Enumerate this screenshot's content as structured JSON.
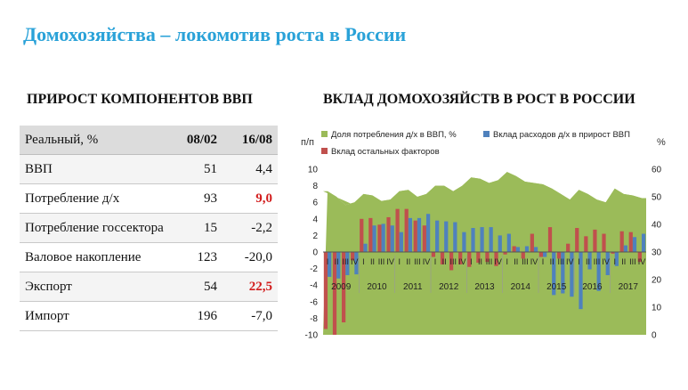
{
  "page": {
    "title": "Домохозяйства – локомотив роста в России",
    "left_heading": "ПРИРОСТ КОМПОНЕНТОВ ВВП",
    "right_heading": "ВКЛАД ДОМОХОЗЯЙСТВ В РОСТ В РОССИИ"
  },
  "table": {
    "header": {
      "label": "Реальный, %",
      "col1": "08/02",
      "col2": "16/08"
    },
    "rows": [
      {
        "label": "ВВП",
        "v1": "51",
        "v2": "4,4",
        "highlight": false
      },
      {
        "label": "Потребление д/х",
        "v1": "93",
        "v2": "9,0",
        "highlight": true
      },
      {
        "label": "Потребление госсектора",
        "v1": "15",
        "v2": "-2,2",
        "highlight": false
      },
      {
        "label": "Валовое накопление",
        "v1": "123",
        "v2": "-20,0",
        "highlight": false
      },
      {
        "label": "Экспорт",
        "v1": "54",
        "v2": "22,5",
        "highlight": true
      },
      {
        "label": "Импорт",
        "v1": "196",
        "v2": "-7,0",
        "highlight": false
      }
    ],
    "highlight_color": "#d21d1d"
  },
  "chart_data": {
    "type": "bar",
    "left_unit": "п/п",
    "right_unit": "%",
    "ylim_left": [
      -10,
      10
    ],
    "yticks_left": [
      -10,
      -8,
      -6,
      -4,
      -2,
      0,
      2,
      4,
      6,
      8,
      10
    ],
    "ylim_right": [
      0,
      60
    ],
    "yticks_right": [
      0,
      10,
      20,
      30,
      40,
      50,
      60
    ],
    "legend_placement": "top",
    "years": [
      "2009",
      "2010",
      "2011",
      "2012",
      "2013",
      "2014",
      "2015",
      "2016",
      "2017"
    ],
    "quarters": [
      "I",
      "II",
      "III",
      "IV",
      "I",
      "II",
      "III",
      "IV",
      "I",
      "II",
      "III",
      "IV",
      "I",
      "II",
      "III",
      "IV",
      "I",
      "II",
      "III",
      "IV",
      "I",
      "II",
      "III",
      "IV",
      "I",
      "II",
      "III",
      "IV",
      "I",
      "II",
      "III",
      "IV",
      "I",
      "II",
      "III",
      "IV"
    ],
    "series": [
      {
        "name": "Доля потребления д/х в ВВП, %",
        "kind": "area",
        "axis": "right",
        "color": "#9bbb59",
        "values": [
          52,
          50,
          47,
          48,
          51,
          50.5,
          48.5,
          49,
          52,
          52.5,
          50,
          51,
          54,
          54,
          52,
          54,
          57,
          56.5,
          55,
          56,
          59,
          57.5,
          55.5,
          55,
          54.5,
          53,
          51,
          49,
          52.5,
          51,
          49,
          48,
          53,
          51,
          50.5,
          49.5
        ]
      },
      {
        "name": "Вклад расходов д/х в прирост ВВП",
        "kind": "bar",
        "axis": "left",
        "color": "#4f81bd",
        "values": [
          -3,
          -3.2,
          -2.8,
          -2.7,
          1,
          3.2,
          3.4,
          3.2,
          2.4,
          4.1,
          4.1,
          4.6,
          3.8,
          3.7,
          3.6,
          2.4,
          2.9,
          3,
          3,
          2,
          2.2,
          0.6,
          0.7,
          0.6,
          -0.6,
          -5.2,
          -5,
          -5.4,
          -6.9,
          -2.1,
          -4.7,
          -2.8,
          -1.7,
          0.8,
          1.8,
          2.2
        ]
      },
      {
        "name": "Вклад остальных факторов",
        "kind": "bar",
        "axis": "left",
        "color": "#c0504d",
        "values": [
          -9.3,
          -10,
          -8.5,
          -1,
          4,
          4.1,
          3.3,
          4.2,
          5.2,
          5.2,
          3.8,
          3.2,
          -0.6,
          -1.5,
          -2.2,
          -1.5,
          -1.8,
          -1.3,
          -1.2,
          -1.7,
          -0.3,
          0.7,
          -0.8,
          2.2,
          -0.6,
          3,
          -0.8,
          1,
          2.9,
          1.9,
          2.7,
          2.2,
          -0.2,
          2.5,
          2.4,
          -1.2
        ]
      }
    ]
  }
}
